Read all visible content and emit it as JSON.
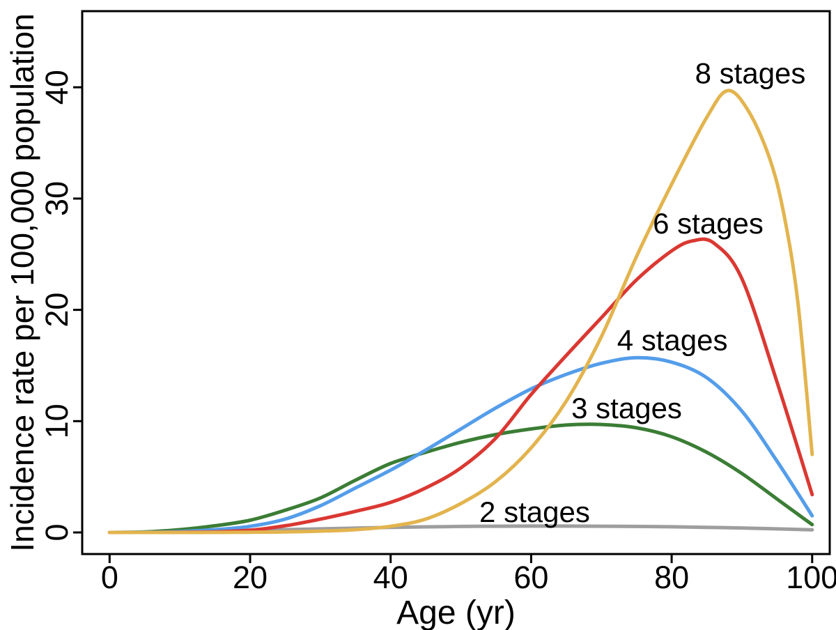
{
  "figure": {
    "background": "#FFFFFF",
    "frame_color": "#000000",
    "text_color": "#000000"
  },
  "chart_data": {
    "type": "line",
    "title": "",
    "xlabel": "Age (yr)",
    "ylabel": "Incidence rate per 100,000 population",
    "x_ticks": [
      0,
      20,
      40,
      60,
      80,
      100
    ],
    "y_ticks": [
      0,
      10,
      20,
      30,
      40
    ],
    "xlim": [
      -3.9,
      102.5
    ],
    "ylim": [
      -1.94,
      46.84
    ],
    "grid": false,
    "legend": "inline-labels",
    "series": [
      {
        "name": "2 stages",
        "color": "#9E9E9E",
        "label": {
          "text": "2 stages",
          "age": 60.5,
          "value": 1.88
        },
        "points": [
          [
            0,
            0
          ],
          [
            5,
            0.02
          ],
          [
            10,
            0.06
          ],
          [
            15,
            0.12
          ],
          [
            20,
            0.18
          ],
          [
            25,
            0.25
          ],
          [
            30,
            0.32
          ],
          [
            35,
            0.39
          ],
          [
            40,
            0.45
          ],
          [
            45,
            0.5
          ],
          [
            50,
            0.54
          ],
          [
            55,
            0.56
          ],
          [
            60,
            0.57
          ],
          [
            65,
            0.57
          ],
          [
            70,
            0.56
          ],
          [
            75,
            0.54
          ],
          [
            80,
            0.51
          ],
          [
            85,
            0.46
          ],
          [
            90,
            0.4
          ],
          [
            95,
            0.32
          ],
          [
            100,
            0.24
          ]
        ]
      },
      {
        "name": "3 stages",
        "color": "#3B7D35",
        "label": {
          "text": "3 stages",
          "age": 73.6,
          "value": 11.2
        },
        "points": [
          [
            0,
            0
          ],
          [
            5,
            0.05
          ],
          [
            10,
            0.25
          ],
          [
            15,
            0.6
          ],
          [
            20,
            1.1
          ],
          [
            25,
            2.0
          ],
          [
            30,
            3.1
          ],
          [
            35,
            4.7
          ],
          [
            40,
            6.2
          ],
          [
            45,
            7.2
          ],
          [
            50,
            8.1
          ],
          [
            55,
            8.8
          ],
          [
            60,
            9.3
          ],
          [
            65,
            9.65
          ],
          [
            70,
            9.7
          ],
          [
            75,
            9.4
          ],
          [
            80,
            8.6
          ],
          [
            85,
            7.2
          ],
          [
            90,
            5.3
          ],
          [
            95,
            3.0
          ],
          [
            100,
            0.7
          ]
        ]
      },
      {
        "name": "4 stages",
        "color": "#549DEA",
        "label": {
          "text": "4 stages",
          "age": 80.1,
          "value": 17.3
        },
        "points": [
          [
            0,
            0
          ],
          [
            5,
            0.02
          ],
          [
            10,
            0.08
          ],
          [
            15,
            0.25
          ],
          [
            20,
            0.55
          ],
          [
            25,
            1.2
          ],
          [
            30,
            2.4
          ],
          [
            35,
            4.0
          ],
          [
            40,
            5.6
          ],
          [
            45,
            7.4
          ],
          [
            50,
            9.3
          ],
          [
            55,
            11.2
          ],
          [
            60,
            12.9
          ],
          [
            65,
            14.2
          ],
          [
            70,
            15.2
          ],
          [
            75,
            15.7
          ],
          [
            80,
            15.3
          ],
          [
            85,
            13.9
          ],
          [
            90,
            10.9
          ],
          [
            95,
            6.4
          ],
          [
            100,
            1.5
          ]
        ]
      },
      {
        "name": "6 stages",
        "color": "#DA3832",
        "label": {
          "text": "6 stages",
          "age": 85.2,
          "value": 27.8
        },
        "points": [
          [
            0,
            0
          ],
          [
            5,
            0
          ],
          [
            10,
            0.02
          ],
          [
            15,
            0.06
          ],
          [
            20,
            0.2
          ],
          [
            25,
            0.6
          ],
          [
            30,
            1.2
          ],
          [
            35,
            1.9
          ],
          [
            40,
            2.7
          ],
          [
            45,
            4.0
          ],
          [
            50,
            5.8
          ],
          [
            55,
            8.5
          ],
          [
            60,
            12.4
          ],
          [
            65,
            15.9
          ],
          [
            70,
            19.3
          ],
          [
            75,
            22.7
          ],
          [
            80,
            25.3
          ],
          [
            83,
            26.2
          ],
          [
            86,
            26.0
          ],
          [
            90,
            22.8
          ],
          [
            95,
            13.5
          ],
          [
            100,
            3.4
          ]
        ]
      },
      {
        "name": "8 stages",
        "color": "#E3B44E",
        "label": {
          "text": "8 stages",
          "age": 91.2,
          "value": 41.3
        },
        "points": [
          [
            0,
            0
          ],
          [
            10,
            0
          ],
          [
            20,
            0.02
          ],
          [
            25,
            0.05
          ],
          [
            30,
            0.12
          ],
          [
            35,
            0.25
          ],
          [
            40,
            0.55
          ],
          [
            45,
            1.2
          ],
          [
            50,
            2.6
          ],
          [
            55,
            4.6
          ],
          [
            60,
            7.6
          ],
          [
            65,
            11.8
          ],
          [
            70,
            17.6
          ],
          [
            75,
            24.8
          ],
          [
            80,
            31.3
          ],
          [
            85,
            37.3
          ],
          [
            88,
            39.7
          ],
          [
            91,
            37.8
          ],
          [
            94,
            33.5
          ],
          [
            96,
            28.5
          ],
          [
            98,
            20.5
          ],
          [
            100,
            7.0
          ]
        ]
      }
    ]
  }
}
